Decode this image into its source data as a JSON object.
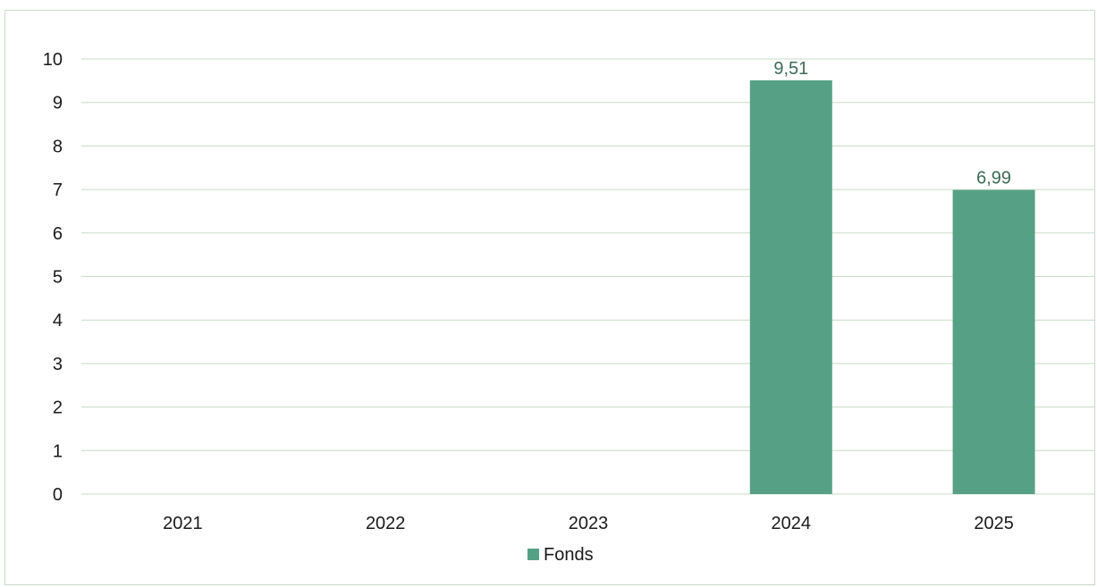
{
  "chart_data": {
    "type": "bar",
    "categories": [
      "2021",
      "2022",
      "2023",
      "2024",
      "2025"
    ],
    "series": [
      {
        "name": "Fonds",
        "values": [
          null,
          null,
          null,
          9.51,
          6.99
        ],
        "value_labels": [
          "",
          "",
          "",
          "9,51",
          "6,99"
        ],
        "color": "#56a185"
      }
    ],
    "ylim": [
      0,
      10
    ],
    "yticks": [
      0,
      1,
      2,
      3,
      4,
      5,
      6,
      7,
      8,
      9,
      10
    ],
    "grid": true,
    "gridline_color": "#c9dcc9",
    "legend_position": "bottom",
    "legend": [
      "Fonds"
    ],
    "title": "",
    "xlabel": "",
    "ylabel": ""
  }
}
